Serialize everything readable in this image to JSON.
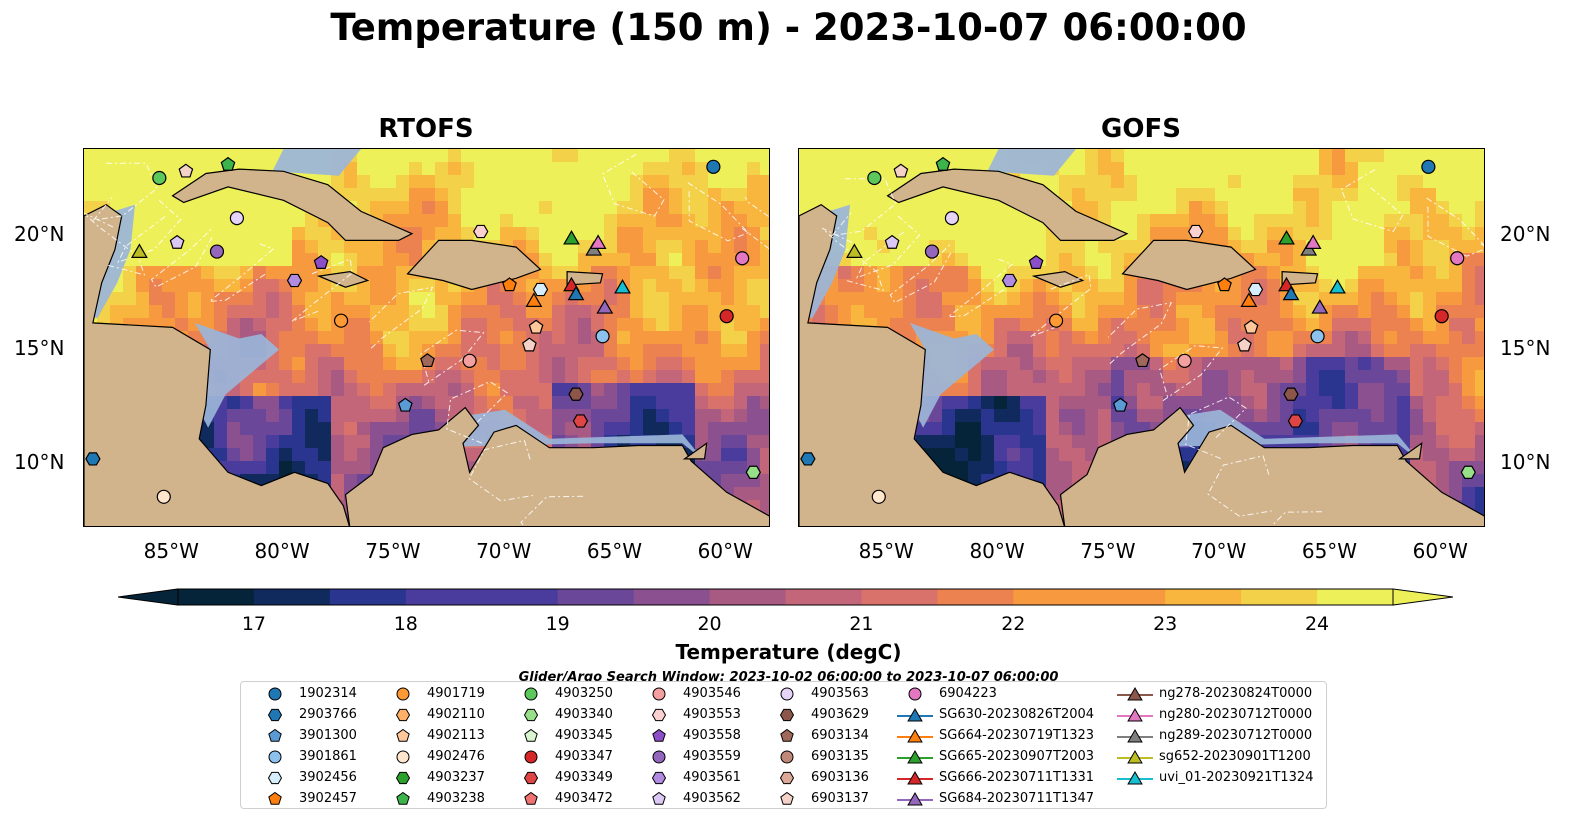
{
  "title": "Temperature (150 m) - 2023-10-07 06:00:00",
  "panels": [
    {
      "id": "rtofs",
      "title": "RTOFS"
    },
    {
      "id": "gofs",
      "title": "GOFS"
    }
  ],
  "axes": {
    "lon_labels": [
      "85°W",
      "80°W",
      "75°W",
      "70°W",
      "65°W",
      "60°W"
    ],
    "lat_labels": [
      "20°N",
      "15°N",
      "10°N"
    ],
    "lon_range": [
      -89,
      -58
    ],
    "lat_range": [
      7,
      24
    ]
  },
  "colorbar": {
    "label": "Temperature (degC)",
    "ticks": [
      "17",
      "18",
      "19",
      "20",
      "21",
      "22",
      "23",
      "24"
    ],
    "range": [
      16.5,
      24.5
    ],
    "extend": "both"
  },
  "search_window": "Glider/Argo Search Window: 2023-10-02 06:00:00 to 2023-10-07 06:00:00",
  "colors": {
    "land": "#d2b48c",
    "shallow": "#9ab5d9",
    "cold": "#05243a",
    "warm": "#f5e25a"
  },
  "legend": [
    [
      "1902314",
      "circle",
      "#1f77b4"
    ],
    [
      "2903766",
      "hexagon",
      "#1f77b4"
    ],
    [
      "3901300",
      "pentagon",
      "#5b9bd5"
    ],
    [
      "3901861",
      "circle",
      "#8ec2ee"
    ],
    [
      "3902456",
      "hexagon",
      "#d6eefc"
    ],
    [
      "3902457",
      "pentagon",
      "#ff7f0e"
    ],
    [
      "4901719",
      "circle",
      "#ff9933"
    ],
    [
      "4902110",
      "hexagon",
      "#ffb066"
    ],
    [
      "4902113",
      "pentagon",
      "#ffc89a"
    ],
    [
      "4902476",
      "circle",
      "#ffe6cc"
    ],
    [
      "4903237",
      "hexagon",
      "#2ca02c"
    ],
    [
      "4903238",
      "pentagon",
      "#3cb44b"
    ],
    [
      "4903250",
      "circle",
      "#5cc85c"
    ],
    [
      "4903340",
      "hexagon",
      "#98df8a"
    ],
    [
      "4903345",
      "pentagon",
      "#d7f5cf"
    ],
    [
      "4903347",
      "circle",
      "#d62728"
    ],
    [
      "4903349",
      "hexagon",
      "#e04545"
    ],
    [
      "4903472",
      "pentagon",
      "#f07272"
    ],
    [
      "4903546",
      "circle",
      "#f4a0a0"
    ],
    [
      "4903553",
      "hexagon",
      "#fbd0d0"
    ],
    [
      "4903558",
      "pentagon",
      "#8c4fc8"
    ],
    [
      "4903559",
      "circle",
      "#9467bd"
    ],
    [
      "4903561",
      "hexagon",
      "#b08be0"
    ],
    [
      "4903562",
      "pentagon",
      "#dcc8f5"
    ],
    [
      "4903563",
      "circle",
      "#e5d3f8"
    ],
    [
      "4903629",
      "hexagon",
      "#8c564b"
    ],
    [
      "6903134",
      "pentagon",
      "#a0685a"
    ],
    [
      "6903135",
      "circle",
      "#c08878"
    ],
    [
      "6903136",
      "hexagon",
      "#dca898"
    ],
    [
      "6903137",
      "pentagon",
      "#f5d2c8"
    ],
    [
      "6904223",
      "circle",
      "#e377c2"
    ],
    [
      "SG630-20230826T2004",
      "triangle",
      "#1f77b4"
    ],
    [
      "SG664-20230719T1323",
      "triangle",
      "#ff7f0e"
    ],
    [
      "SG665-20230907T2003",
      "triangle",
      "#2ca02c"
    ],
    [
      "SG666-20230711T1331",
      "triangle",
      "#d62728"
    ],
    [
      "SG684-20230711T1347",
      "triangle",
      "#9467bd"
    ],
    [
      "ng278-20230824T0000",
      "triangle",
      "#8c564b"
    ],
    [
      "ng280-20230712T0000",
      "triangle",
      "#e377c2"
    ],
    [
      "ng289-20230712T0000",
      "triangle",
      "#7f7f7f"
    ],
    [
      "sg652-20230901T1200",
      "triangle",
      "#bcbd22"
    ],
    [
      "uvi_01-20230921T1324",
      "triangle",
      "#17becf"
    ]
  ],
  "markers": [
    {
      "lon": -60.6,
      "lat": 23.2,
      "i": 0
    },
    {
      "lon": -88.6,
      "lat": 10.1,
      "i": 1
    },
    {
      "lon": -74.5,
      "lat": 12.5,
      "i": 2
    },
    {
      "lon": -65.6,
      "lat": 15.6,
      "i": 3
    },
    {
      "lon": -68.4,
      "lat": 17.7,
      "i": 4
    },
    {
      "lon": -69.8,
      "lat": 17.9,
      "i": 5
    },
    {
      "lon": -77.4,
      "lat": 16.3,
      "i": 6
    },
    {
      "lon": -68.6,
      "lat": 16.0,
      "i": 8
    },
    {
      "lon": -85.4,
      "lat": 8.4,
      "i": 9
    },
    {
      "lon": -82.5,
      "lat": 23.3,
      "i": 11
    },
    {
      "lon": -85.6,
      "lat": 22.7,
      "i": 12
    },
    {
      "lon": -58.8,
      "lat": 9.5,
      "i": 13
    },
    {
      "lon": -60.0,
      "lat": 16.5,
      "i": 15
    },
    {
      "lon": -66.6,
      "lat": 11.8,
      "i": 16
    },
    {
      "lon": -71.6,
      "lat": 14.5,
      "i": 18
    },
    {
      "lon": -71.1,
      "lat": 20.3,
      "i": 19
    },
    {
      "lon": -78.3,
      "lat": 18.9,
      "i": 20
    },
    {
      "lon": -83.0,
      "lat": 19.4,
      "i": 21
    },
    {
      "lon": -79.5,
      "lat": 18.1,
      "i": 22
    },
    {
      "lon": -84.8,
      "lat": 19.8,
      "i": 23
    },
    {
      "lon": -82.1,
      "lat": 20.9,
      "i": 24
    },
    {
      "lon": -66.8,
      "lat": 13.0,
      "i": 25
    },
    {
      "lon": -73.5,
      "lat": 14.5,
      "i": 26
    },
    {
      "lon": -84.4,
      "lat": 23.0,
      "i": 29
    },
    {
      "lon": -59.3,
      "lat": 19.1,
      "i": 30
    },
    {
      "lon": -68.7,
      "lat": 17.2,
      "i": 32
    },
    {
      "lon": -67.0,
      "lat": 20.0,
      "i": 33
    },
    {
      "lon": -67.0,
      "lat": 17.9,
      "i": 34
    },
    {
      "lon": -65.5,
      "lat": 16.9,
      "i": 35
    },
    {
      "lon": -66.0,
      "lat": 19.5,
      "i": 38
    },
    {
      "lon": -86.5,
      "lat": 19.4,
      "i": 39
    },
    {
      "lon": -64.7,
      "lat": 17.8,
      "i": 40
    },
    {
      "lon": -65.8,
      "lat": 19.8,
      "i": 37
    },
    {
      "lon": -66.8,
      "lat": 17.5,
      "i": 31
    },
    {
      "lon": -68.9,
      "lat": 15.2,
      "i": 29
    }
  ]
}
